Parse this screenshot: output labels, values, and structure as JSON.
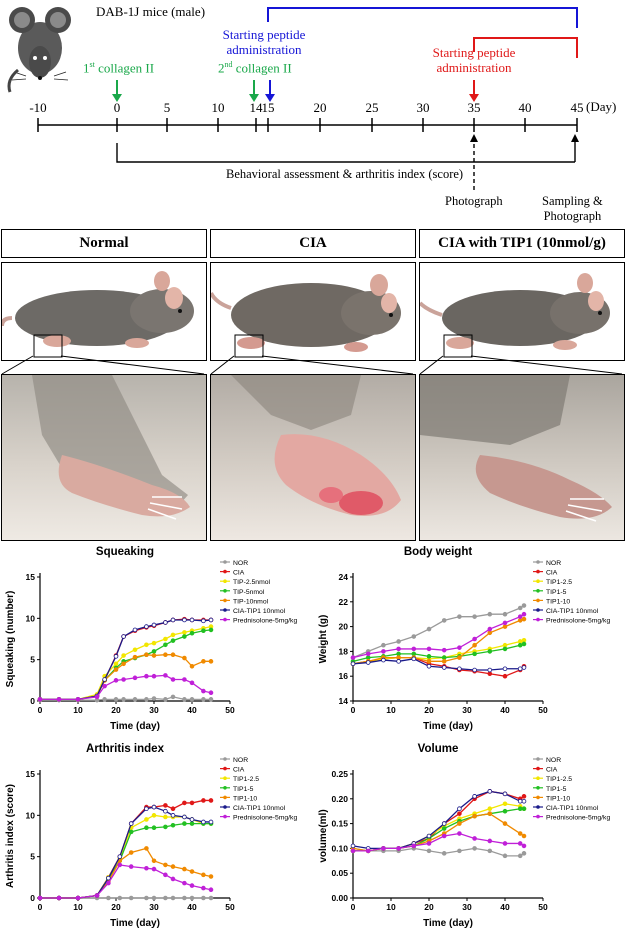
{
  "timeline": {
    "mouse_label": "DAB-1J mice (male)",
    "first_collagen": "1st collagen II",
    "second_collagen": "2nd collagen II",
    "start_peptide_blue_line1": "Starting peptide",
    "start_peptide_blue_line2": "administration",
    "start_peptide_red_line1": "Starting peptide",
    "start_peptide_red_line2": "administration",
    "ticks": [
      "-10",
      "0",
      "5",
      "10",
      "14",
      "15",
      "20",
      "25",
      "30",
      "35",
      "40",
      "45"
    ],
    "day_unit": "(Day)",
    "behavioral": "Behavioral assessment & arthritis index (score)",
    "photograph": "Photograph",
    "sampling_line1": "Sampling &",
    "sampling_line2": "Photograph",
    "colors": {
      "green": "#1aa84a",
      "blue": "#1515d6",
      "red": "#e01818"
    }
  },
  "panels": {
    "normal": "Normal",
    "cia": "CIA",
    "cia_tip1": "CIA with TIP1 (10nmol/g)"
  },
  "chart_data": [
    {
      "type": "line",
      "title": "Squeaking",
      "xlabel": "Time (day)",
      "ylabel": "Squeaking (number)",
      "xlim": [
        0,
        50
      ],
      "ylim": [
        0,
        15
      ],
      "xticks": [
        0,
        10,
        20,
        30,
        40,
        50
      ],
      "yticks": [
        0,
        5,
        10,
        15
      ],
      "legend_position": "top-right",
      "x": [
        0,
        5,
        10,
        15,
        17,
        20,
        22,
        25,
        28,
        30,
        33,
        35,
        38,
        40,
        43,
        45
      ],
      "series": [
        {
          "name": "NOR",
          "color": "#9a9a9a",
          "values": [
            0.1,
            0.1,
            0.1,
            0.1,
            0.2,
            0.2,
            0.2,
            0.2,
            0.2,
            0.3,
            0.2,
            0.5,
            0.2,
            0.2,
            0.2,
            0.2
          ]
        },
        {
          "name": "CIA",
          "color": "#e01818",
          "values": [
            0.2,
            0.2,
            0.2,
            0.6,
            2.5,
            5.5,
            7.8,
            8.5,
            8.9,
            9.1,
            9.5,
            9.8,
            9.9,
            9.8,
            9.8,
            9.8
          ]
        },
        {
          "name": "TIP-2.5nmol",
          "color": "#f2e600",
          "values": [
            0.2,
            0.2,
            0.2,
            0.8,
            3.0,
            4.5,
            5.5,
            6.2,
            6.8,
            7.0,
            7.5,
            8.0,
            8.3,
            8.5,
            8.8,
            9.0
          ]
        },
        {
          "name": "TIP-5nmol",
          "color": "#22c022",
          "values": [
            0.2,
            0.2,
            0.2,
            0.6,
            2.5,
            4.0,
            4.8,
            5.2,
            5.6,
            6.0,
            6.8,
            7.3,
            7.8,
            8.2,
            8.5,
            8.6
          ]
        },
        {
          "name": "TIP-10nmol",
          "color": "#f08a00",
          "values": [
            0.2,
            0.2,
            0.2,
            0.6,
            2.5,
            3.8,
            4.5,
            5.3,
            5.6,
            5.5,
            5.6,
            5.6,
            5.2,
            4.2,
            4.8,
            4.8
          ]
        },
        {
          "name": "CIA-TIP1 10nmol",
          "color": "#1a1a8a",
          "values": [
            0.2,
            0.2,
            0.2,
            0.6,
            2.6,
            5.4,
            7.8,
            8.6,
            9.0,
            9.2,
            9.5,
            9.8,
            9.8,
            9.8,
            9.7,
            9.8
          ]
        },
        {
          "name": "Prednisolone-5mg/kg",
          "color": "#c020d8",
          "values": [
            0.2,
            0.2,
            0.2,
            0.5,
            1.8,
            2.5,
            2.6,
            2.8,
            3.0,
            3.0,
            3.1,
            2.6,
            2.6,
            2.2,
            1.2,
            1.0
          ]
        }
      ]
    },
    {
      "type": "line",
      "title": "Body weight",
      "xlabel": "Time (day)",
      "ylabel": "Weight (g)",
      "xlim": [
        0,
        50
      ],
      "ylim": [
        14,
        24
      ],
      "xticks": [
        0,
        10,
        20,
        30,
        40,
        50
      ],
      "yticks": [
        14,
        16,
        18,
        20,
        22,
        24
      ],
      "legend_position": "top-right",
      "x": [
        0,
        4,
        8,
        12,
        16,
        20,
        24,
        28,
        32,
        36,
        40,
        44,
        45
      ],
      "series": [
        {
          "name": "NOR",
          "color": "#9a9a9a",
          "values": [
            17.5,
            18.0,
            18.5,
            18.8,
            19.2,
            19.8,
            20.5,
            20.8,
            20.8,
            21.0,
            21.0,
            21.5,
            21.7
          ]
        },
        {
          "name": "CIA",
          "color": "#e01818",
          "values": [
            17.0,
            17.2,
            17.4,
            17.5,
            17.5,
            17.0,
            16.8,
            16.5,
            16.4,
            16.2,
            16.0,
            16.5,
            16.8
          ]
        },
        {
          "name": "TIP1-2.5",
          "color": "#f2e600",
          "values": [
            17.0,
            17.2,
            17.4,
            17.5,
            17.5,
            17.4,
            17.5,
            17.8,
            18.0,
            18.2,
            18.5,
            18.8,
            18.9
          ]
        },
        {
          "name": "TIP1-5",
          "color": "#22c022",
          "values": [
            17.2,
            17.5,
            17.6,
            17.8,
            17.8,
            17.6,
            17.5,
            17.6,
            17.8,
            18.0,
            18.2,
            18.5,
            18.6
          ]
        },
        {
          "name": "TIP1-10",
          "color": "#f08a00",
          "values": [
            17.0,
            17.2,
            17.5,
            17.5,
            17.5,
            17.2,
            17.2,
            17.5,
            18.5,
            19.5,
            20.0,
            20.5,
            20.6
          ]
        },
        {
          "name": "CIA-TIP1 10nmol",
          "color": "#1a1a8a",
          "values": [
            17.0,
            17.1,
            17.3,
            17.2,
            17.4,
            16.8,
            16.7,
            16.6,
            16.5,
            16.5,
            16.6,
            16.6,
            16.7
          ]
        },
        {
          "name": "Prednisolone-5mg/kg",
          "color": "#c020d8",
          "values": [
            17.5,
            17.8,
            18.0,
            18.2,
            18.2,
            18.2,
            18.1,
            18.3,
            19.0,
            19.8,
            20.3,
            20.8,
            21.0
          ]
        }
      ]
    },
    {
      "type": "line",
      "title": "Arthritis index",
      "xlabel": "Time (day)",
      "ylabel": "Arthritis index (score)",
      "xlim": [
        0,
        50
      ],
      "ylim": [
        0,
        15
      ],
      "xticks": [
        0,
        10,
        20,
        30,
        40,
        50
      ],
      "yticks": [
        0,
        5,
        10,
        15
      ],
      "legend_position": "top-right",
      "x": [
        0,
        5,
        10,
        15,
        18,
        21,
        24,
        28,
        30,
        33,
        35,
        38,
        40,
        43,
        45
      ],
      "series": [
        {
          "name": "NOR",
          "color": "#9a9a9a",
          "values": [
            0,
            0,
            0,
            0,
            0,
            0,
            0,
            0,
            0,
            0,
            0,
            0,
            0,
            0,
            0
          ]
        },
        {
          "name": "CIA",
          "color": "#e01818",
          "values": [
            0,
            0,
            0,
            0.3,
            2.5,
            5.0,
            9.0,
            11.0,
            11.0,
            11.2,
            10.8,
            11.5,
            11.5,
            11.8,
            11.8
          ]
        },
        {
          "name": "TIP1-2.5",
          "color": "#f2e600",
          "values": [
            0,
            0,
            0,
            0.3,
            2.5,
            4.8,
            8.5,
            9.5,
            10.0,
            9.8,
            9.8,
            9.8,
            9.5,
            9.0,
            9.0
          ]
        },
        {
          "name": "TIP1-5",
          "color": "#22c022",
          "values": [
            0,
            0,
            0,
            0.3,
            2.3,
            4.5,
            8.0,
            8.5,
            8.5,
            8.6,
            8.8,
            9.0,
            9.0,
            9.0,
            9.0
          ]
        },
        {
          "name": "TIP1-10",
          "color": "#f08a00",
          "values": [
            0,
            0,
            0,
            0.3,
            2.0,
            4.5,
            5.5,
            6.0,
            4.5,
            4.0,
            3.8,
            3.5,
            3.2,
            2.8,
            2.6
          ]
        },
        {
          "name": "CIA-TIP1 10nmol",
          "color": "#1a1a8a",
          "values": [
            0,
            0,
            0,
            0.3,
            2.4,
            5.0,
            9.0,
            10.8,
            11.0,
            10.5,
            10.0,
            9.8,
            9.5,
            9.2,
            9.2
          ]
        },
        {
          "name": "Prednisolone-5mg/kg",
          "color": "#c020d8",
          "values": [
            0,
            0,
            0,
            0.3,
            1.8,
            4.0,
            3.8,
            3.6,
            3.5,
            2.8,
            2.3,
            1.8,
            1.5,
            1.2,
            1.0
          ]
        }
      ]
    },
    {
      "type": "line",
      "title": "Volume",
      "xlabel": "Time (day)",
      "ylabel": "volume(ml)",
      "xlim": [
        0,
        50
      ],
      "ylim": [
        0.0,
        0.25
      ],
      "xticks": [
        0,
        10,
        20,
        30,
        40,
        50
      ],
      "yticks": [
        "0.00",
        "0.05",
        "0.10",
        "0.15",
        "0.20",
        "0.25"
      ],
      "legend_position": "top-right",
      "x": [
        0,
        4,
        8,
        12,
        16,
        20,
        24,
        28,
        32,
        36,
        40,
        44,
        45
      ],
      "series": [
        {
          "name": "NOR",
          "color": "#9a9a9a",
          "values": [
            0.1,
            0.095,
            0.095,
            0.095,
            0.1,
            0.095,
            0.09,
            0.095,
            0.1,
            0.095,
            0.085,
            0.085,
            0.09
          ]
        },
        {
          "name": "CIA",
          "color": "#e01818",
          "values": [
            0.095,
            0.095,
            0.1,
            0.1,
            0.11,
            0.12,
            0.15,
            0.17,
            0.2,
            0.215,
            0.21,
            0.2,
            0.205
          ]
        },
        {
          "name": "TIP1-2.5",
          "color": "#f2e600",
          "values": [
            0.095,
            0.095,
            0.1,
            0.1,
            0.11,
            0.125,
            0.145,
            0.16,
            0.17,
            0.18,
            0.19,
            0.185,
            0.18
          ]
        },
        {
          "name": "TIP1-5",
          "color": "#22c022",
          "values": [
            0.095,
            0.095,
            0.1,
            0.1,
            0.105,
            0.12,
            0.14,
            0.155,
            0.165,
            0.17,
            0.175,
            0.18,
            0.18
          ]
        },
        {
          "name": "TIP1-10",
          "color": "#f08a00",
          "values": [
            0.1,
            0.095,
            0.1,
            0.1,
            0.105,
            0.115,
            0.13,
            0.15,
            0.165,
            0.17,
            0.15,
            0.13,
            0.125
          ]
        },
        {
          "name": "CIA-TIP1 10nmol",
          "color": "#1a1a8a",
          "values": [
            0.105,
            0.1,
            0.1,
            0.1,
            0.11,
            0.125,
            0.15,
            0.18,
            0.205,
            0.215,
            0.21,
            0.195,
            0.195
          ]
        },
        {
          "name": "Prednisolone-5mg/kg",
          "color": "#c020d8",
          "values": [
            0.095,
            0.095,
            0.1,
            0.1,
            0.105,
            0.11,
            0.125,
            0.13,
            0.12,
            0.115,
            0.11,
            0.11,
            0.105
          ]
        }
      ]
    }
  ]
}
